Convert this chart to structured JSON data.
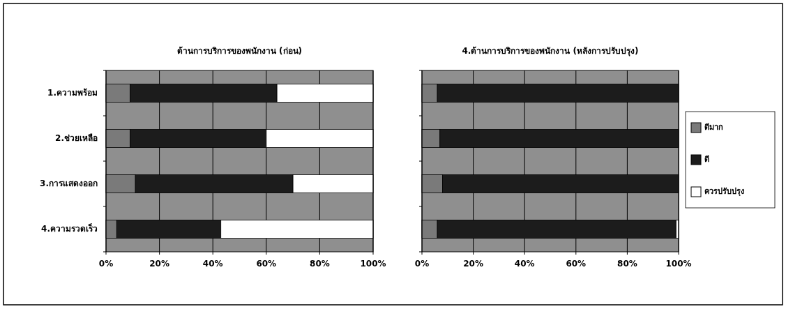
{
  "chart_data": [
    {
      "type": "bar",
      "orientation": "horizontal",
      "stacked": true,
      "title": "ด้านการบริการของพนักงาน (ก่อน)",
      "categories": [
        "1.ความพร้อม",
        "2.ช่วยเหลือ",
        "3.การแสดงออก",
        "4.ความรวดเร็ว"
      ],
      "series": [
        {
          "color": "#7a7a7a",
          "values": [
            9,
            9,
            11,
            4
          ]
        },
        {
          "color": "#1c1c1c",
          "values": [
            55,
            51,
            59,
            39
          ]
        },
        {
          "color": "#ffffff",
          "values": [
            36,
            40,
            30,
            57
          ]
        }
      ],
      "xlim": [
        0,
        100
      ],
      "xticks": [
        {
          "value": 0,
          "label": "0%"
        },
        {
          "value": 20,
          "label": "20%"
        },
        {
          "value": 40,
          "label": "40%"
        },
        {
          "value": 60,
          "label": "60%"
        },
        {
          "value": 80,
          "label": "80%"
        },
        {
          "value": 100,
          "label": "100%"
        }
      ],
      "grid": "x",
      "legend": false
    },
    {
      "type": "bar",
      "orientation": "horizontal",
      "stacked": true,
      "title": "4.ด้านการบริการของพนักงาน (หลังการปรับปรุง)",
      "categories": [
        null,
        null,
        null,
        null
      ],
      "series": [
        {
          "name": "ดีมาก",
          "color": "#7a7a7a",
          "values": [
            6,
            7,
            8,
            6
          ]
        },
        {
          "name": "ดี",
          "color": "#1c1c1c",
          "values": [
            94,
            93,
            92,
            93
          ]
        },
        {
          "name": "ควรปรับปรุง",
          "color": "#ffffff",
          "values": [
            0,
            0,
            0,
            1
          ]
        }
      ],
      "xlim": [
        0,
        100
      ],
      "xticks": [
        {
          "value": 0,
          "label": "0%"
        },
        {
          "value": 20,
          "label": "20%"
        },
        {
          "value": 40,
          "label": "40%"
        },
        {
          "value": 60,
          "label": "60%"
        },
        {
          "value": 80,
          "label": "80%"
        },
        {
          "value": 100,
          "label": "100%"
        }
      ],
      "grid": "x",
      "legend": "right",
      "tick_labels": "x"
    }
  ]
}
